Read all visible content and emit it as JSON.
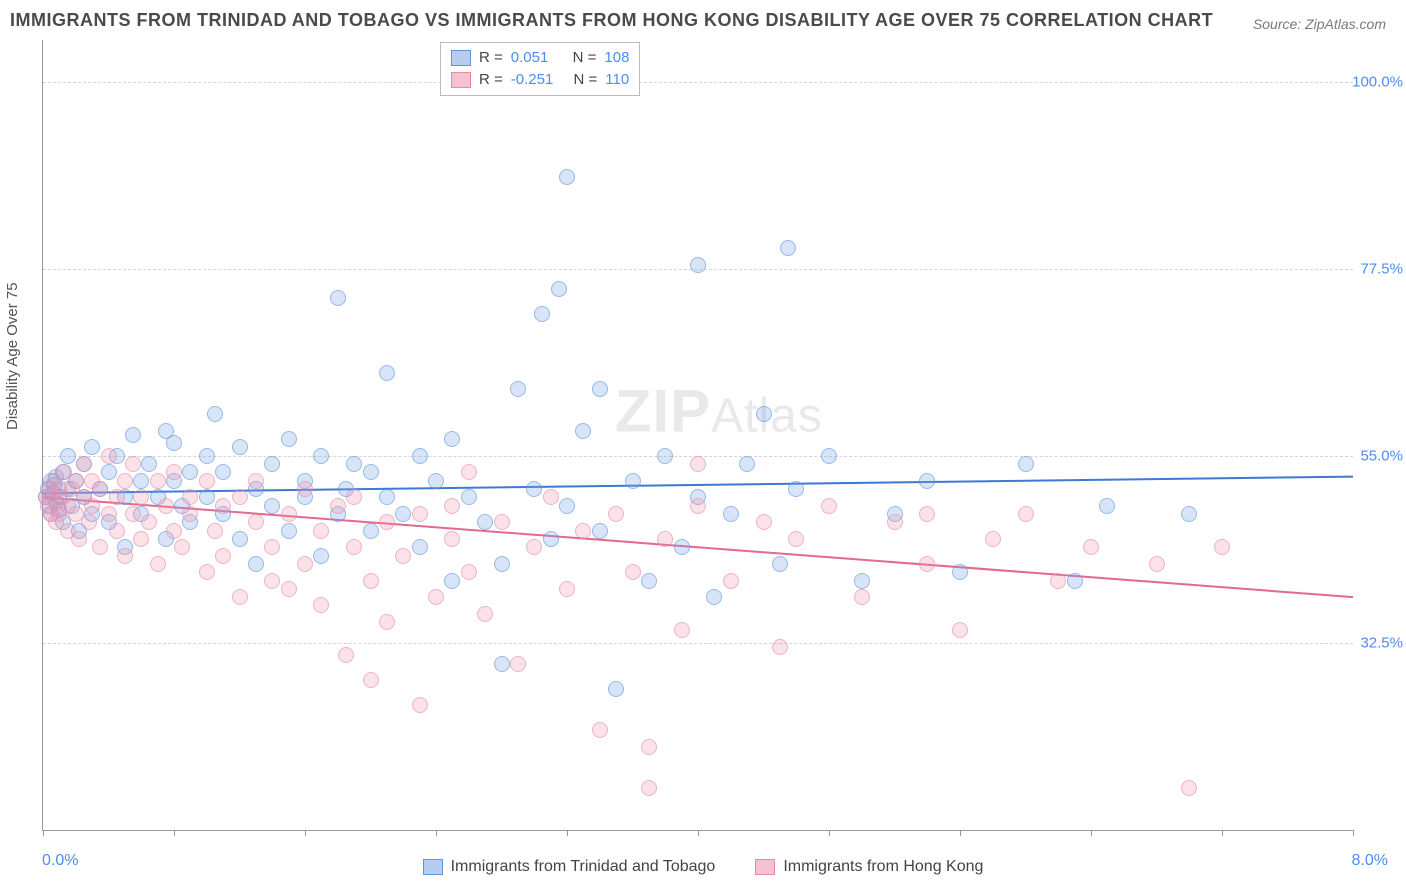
{
  "title": "IMMIGRANTS FROM TRINIDAD AND TOBAGO VS IMMIGRANTS FROM HONG KONG DISABILITY AGE OVER 75 CORRELATION CHART",
  "source": "Source: ZipAtlas.com",
  "watermark": {
    "big": "ZIP",
    "small": "Atlas"
  },
  "ylabel": "Disability Age Over 75",
  "chart": {
    "type": "scatter",
    "background_color": "#ffffff",
    "grid_color": "#d5d5d5",
    "tick_label_color": "#4b8ef0",
    "axis_color": "#999999",
    "title_fontsize": 18,
    "label_fontsize": 15,
    "tick_fontsize": 15,
    "xlim": [
      0.0,
      8.0
    ],
    "ylim": [
      10.0,
      105.0
    ],
    "x_ticks": [
      0.0,
      0.8,
      1.6,
      2.4,
      3.2,
      4.0,
      4.8,
      5.6,
      6.4,
      7.2,
      8.0
    ],
    "x_tick_labels": {
      "min": "0.0%",
      "max": "8.0%"
    },
    "y_grid": [
      32.5,
      55.0,
      77.5,
      100.0
    ],
    "y_grid_labels": [
      "32.5%",
      "55.0%",
      "77.5%",
      "100.0%"
    ],
    "marker_radius": 7,
    "line_width": 2,
    "series": [
      {
        "name": "Immigrants from Trinidad and Tobago",
        "color_fill": "rgba(124,167,232,0.45)",
        "color_stroke": "#5f94db",
        "swatch_fill": "#b6cdf0",
        "swatch_stroke": "#5f94db",
        "trend_color": "#3d79d6",
        "r": "0.051",
        "n": "108",
        "trend": {
          "y_at_xmin": 50.5,
          "y_at_xmax": 52.5
        },
        "points": [
          [
            0.02,
            50
          ],
          [
            0.03,
            51
          ],
          [
            0.04,
            49
          ],
          [
            0.05,
            52
          ],
          [
            0.05,
            48
          ],
          [
            0.06,
            50.5
          ],
          [
            0.07,
            51.5
          ],
          [
            0.08,
            49.5
          ],
          [
            0.08,
            52.5
          ],
          [
            0.1,
            48.5
          ],
          [
            0.1,
            50
          ],
          [
            0.12,
            53
          ],
          [
            0.12,
            47
          ],
          [
            0.15,
            51
          ],
          [
            0.15,
            55
          ],
          [
            0.18,
            49
          ],
          [
            0.2,
            52
          ],
          [
            0.22,
            46
          ],
          [
            0.25,
            54
          ],
          [
            0.25,
            50
          ],
          [
            0.3,
            56
          ],
          [
            0.3,
            48
          ],
          [
            0.35,
            51
          ],
          [
            0.4,
            53
          ],
          [
            0.4,
            47
          ],
          [
            0.45,
            55
          ],
          [
            0.5,
            50
          ],
          [
            0.5,
            44
          ],
          [
            0.55,
            57.5
          ],
          [
            0.6,
            52
          ],
          [
            0.6,
            48
          ],
          [
            0.65,
            54
          ],
          [
            0.7,
            50
          ],
          [
            0.75,
            58
          ],
          [
            0.75,
            45
          ],
          [
            0.8,
            52
          ],
          [
            0.8,
            56.5
          ],
          [
            0.85,
            49
          ],
          [
            0.9,
            53
          ],
          [
            0.9,
            47
          ],
          [
            1.0,
            55
          ],
          [
            1.0,
            50
          ],
          [
            1.05,
            60
          ],
          [
            1.1,
            48
          ],
          [
            1.1,
            53
          ],
          [
            1.2,
            45
          ],
          [
            1.2,
            56
          ],
          [
            1.3,
            51
          ],
          [
            1.3,
            42
          ],
          [
            1.4,
            54
          ],
          [
            1.4,
            49
          ],
          [
            1.5,
            57
          ],
          [
            1.5,
            46
          ],
          [
            1.6,
            52
          ],
          [
            1.6,
            50
          ],
          [
            1.7,
            55
          ],
          [
            1.7,
            43
          ],
          [
            1.8,
            48
          ],
          [
            1.8,
            74
          ],
          [
            1.85,
            51
          ],
          [
            1.9,
            54
          ],
          [
            2.0,
            46
          ],
          [
            2.0,
            53
          ],
          [
            2.1,
            50
          ],
          [
            2.1,
            65
          ],
          [
            2.2,
            48
          ],
          [
            2.3,
            55
          ],
          [
            2.3,
            44
          ],
          [
            2.4,
            52
          ],
          [
            2.5,
            40
          ],
          [
            2.5,
            57
          ],
          [
            2.6,
            50
          ],
          [
            2.7,
            47
          ],
          [
            2.8,
            42
          ],
          [
            2.8,
            30
          ],
          [
            2.9,
            63
          ],
          [
            3.0,
            51
          ],
          [
            3.05,
            72
          ],
          [
            3.1,
            45
          ],
          [
            3.15,
            75
          ],
          [
            3.2,
            88.5
          ],
          [
            3.2,
            49
          ],
          [
            3.3,
            58
          ],
          [
            3.4,
            63
          ],
          [
            3.4,
            46
          ],
          [
            3.5,
            27
          ],
          [
            3.6,
            52
          ],
          [
            3.7,
            40
          ],
          [
            3.8,
            55
          ],
          [
            3.9,
            44
          ],
          [
            4.0,
            78
          ],
          [
            4.0,
            50
          ],
          [
            4.1,
            38
          ],
          [
            4.2,
            48
          ],
          [
            4.3,
            54
          ],
          [
            4.4,
            60
          ],
          [
            4.5,
            42
          ],
          [
            4.55,
            80
          ],
          [
            4.6,
            51
          ],
          [
            4.8,
            55
          ],
          [
            5.0,
            40
          ],
          [
            5.2,
            48
          ],
          [
            5.4,
            52
          ],
          [
            5.6,
            41
          ],
          [
            6.0,
            54
          ],
          [
            6.3,
            40
          ],
          [
            6.5,
            49
          ],
          [
            7.0,
            48
          ]
        ]
      },
      {
        "name": "Immigrants from Hong Kong",
        "color_fill": "rgba(240,150,175,0.42)",
        "color_stroke": "#e68aa8",
        "swatch_fill": "#f4c3d2",
        "swatch_stroke": "#e68aa8",
        "trend_color": "#e4688f",
        "r": "-0.251",
        "n": "110",
        "trend": {
          "y_at_xmin": 50.0,
          "y_at_xmax": 38.0
        },
        "points": [
          [
            0.02,
            50
          ],
          [
            0.03,
            49
          ],
          [
            0.04,
            51
          ],
          [
            0.05,
            48
          ],
          [
            0.06,
            50
          ],
          [
            0.07,
            52
          ],
          [
            0.08,
            47
          ],
          [
            0.09,
            49
          ],
          [
            0.1,
            51
          ],
          [
            0.1,
            48
          ],
          [
            0.12,
            50
          ],
          [
            0.13,
            53
          ],
          [
            0.15,
            46
          ],
          [
            0.15,
            49
          ],
          [
            0.18,
            51
          ],
          [
            0.2,
            48
          ],
          [
            0.2,
            52
          ],
          [
            0.22,
            45
          ],
          [
            0.25,
            50
          ],
          [
            0.25,
            54
          ],
          [
            0.28,
            47
          ],
          [
            0.3,
            49
          ],
          [
            0.3,
            52
          ],
          [
            0.35,
            44
          ],
          [
            0.35,
            51
          ],
          [
            0.4,
            48
          ],
          [
            0.4,
            55
          ],
          [
            0.45,
            46
          ],
          [
            0.45,
            50
          ],
          [
            0.5,
            43
          ],
          [
            0.5,
            52
          ],
          [
            0.55,
            48
          ],
          [
            0.55,
            54
          ],
          [
            0.6,
            45
          ],
          [
            0.6,
            50
          ],
          [
            0.65,
            47
          ],
          [
            0.7,
            52
          ],
          [
            0.7,
            42
          ],
          [
            0.75,
            49
          ],
          [
            0.8,
            46
          ],
          [
            0.8,
            53
          ],
          [
            0.85,
            44
          ],
          [
            0.9,
            50
          ],
          [
            0.9,
            48
          ],
          [
            1.0,
            41
          ],
          [
            1.0,
            52
          ],
          [
            1.05,
            46
          ],
          [
            1.1,
            49
          ],
          [
            1.1,
            43
          ],
          [
            1.2,
            50
          ],
          [
            1.2,
            38
          ],
          [
            1.3,
            47
          ],
          [
            1.3,
            52
          ],
          [
            1.4,
            44
          ],
          [
            1.4,
            40
          ],
          [
            1.5,
            48
          ],
          [
            1.5,
            39
          ],
          [
            1.6,
            51
          ],
          [
            1.6,
            42
          ],
          [
            1.7,
            46
          ],
          [
            1.7,
            37
          ],
          [
            1.8,
            49
          ],
          [
            1.85,
            31
          ],
          [
            1.9,
            44
          ],
          [
            1.9,
            50
          ],
          [
            2.0,
            40
          ],
          [
            2.0,
            28
          ],
          [
            2.1,
            47
          ],
          [
            2.1,
            35
          ],
          [
            2.2,
            43
          ],
          [
            2.3,
            25
          ],
          [
            2.3,
            48
          ],
          [
            2.4,
            38
          ],
          [
            2.5,
            45
          ],
          [
            2.5,
            49
          ],
          [
            2.6,
            41
          ],
          [
            2.6,
            53
          ],
          [
            2.7,
            36
          ],
          [
            2.8,
            47
          ],
          [
            2.9,
            30
          ],
          [
            3.0,
            44
          ],
          [
            3.1,
            50
          ],
          [
            3.2,
            39
          ],
          [
            3.3,
            46
          ],
          [
            3.4,
            22
          ],
          [
            3.5,
            48
          ],
          [
            3.6,
            41
          ],
          [
            3.7,
            20
          ],
          [
            3.7,
            15
          ],
          [
            3.8,
            45
          ],
          [
            3.9,
            34
          ],
          [
            4.0,
            49
          ],
          [
            4.0,
            54
          ],
          [
            4.2,
            40
          ],
          [
            4.4,
            47
          ],
          [
            4.5,
            32
          ],
          [
            4.6,
            45
          ],
          [
            4.8,
            49
          ],
          [
            5.0,
            38
          ],
          [
            5.2,
            47
          ],
          [
            5.4,
            42
          ],
          [
            5.4,
            48
          ],
          [
            5.6,
            34
          ],
          [
            5.8,
            45
          ],
          [
            6.0,
            48
          ],
          [
            6.2,
            40
          ],
          [
            6.4,
            44
          ],
          [
            6.8,
            42
          ],
          [
            7.0,
            15
          ],
          [
            7.2,
            44
          ]
        ]
      }
    ]
  },
  "legend_top": {
    "rows": [
      {
        "r_label": "R =",
        "n_label": "N ="
      },
      {
        "r_label": "R =",
        "n_label": "N ="
      }
    ]
  }
}
